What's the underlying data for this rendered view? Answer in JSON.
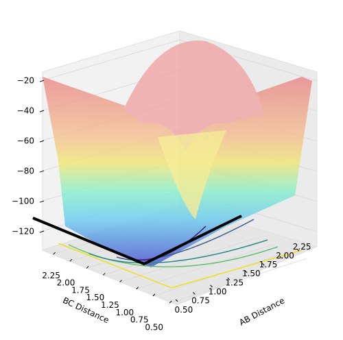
{
  "chart_data": {
    "type": "surface3d",
    "xlabel": "AB Distance",
    "ylabel": "BC Distance",
    "xlim": [
      0.45,
      2.35
    ],
    "xticks": [
      {
        "value": 0.5,
        "label": "0.50"
      },
      {
        "value": 0.75,
        "label": "0.75"
      },
      {
        "value": 1.0,
        "label": "1.00"
      },
      {
        "value": 1.25,
        "label": "1.25"
      },
      {
        "value": 1.5,
        "label": "1.50"
      },
      {
        "value": 1.75,
        "label": "1.75"
      },
      {
        "value": 2.0,
        "label": "2.00"
      },
      {
        "value": 2.25,
        "label": "2.25"
      }
    ],
    "ylim": [
      0.45,
      2.35
    ],
    "yticks": [
      {
        "value": 0.5,
        "label": "0.50"
      },
      {
        "value": 0.75,
        "label": "0.75"
      },
      {
        "value": 1.0,
        "label": "1.00"
      },
      {
        "value": 1.25,
        "label": "1.25"
      },
      {
        "value": 1.5,
        "label": "1.50"
      },
      {
        "value": 1.75,
        "label": "1.75"
      },
      {
        "value": 2.0,
        "label": "2.00"
      },
      {
        "value": 2.25,
        "label": "2.25"
      }
    ],
    "zlim": [
      -130,
      -14
    ],
    "zticks": [
      {
        "value": -20,
        "label": "−20"
      },
      {
        "value": -40,
        "label": "−40"
      },
      {
        "value": -60,
        "label": "−60"
      },
      {
        "value": -80,
        "label": "−80"
      },
      {
        "value": -100,
        "label": "−100"
      },
      {
        "value": -120,
        "label": "−120"
      }
    ],
    "grid": true
  }
}
